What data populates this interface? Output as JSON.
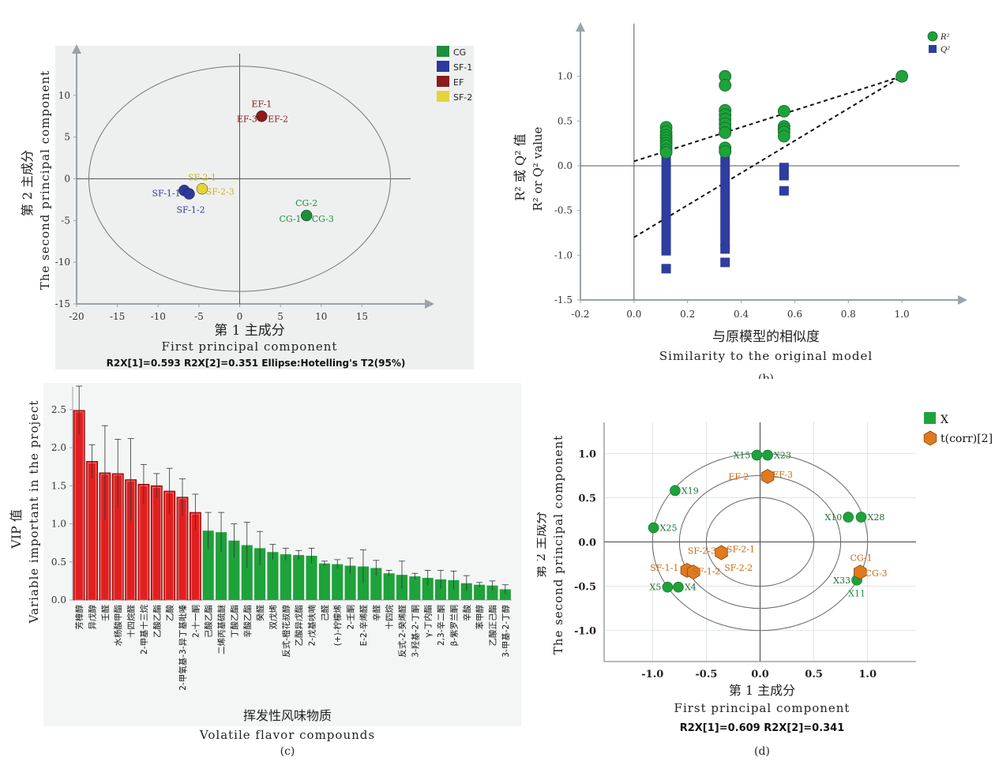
{
  "colors": {
    "CG": "#1a8f3c",
    "SF1": "#2b3a9b",
    "EF": "#8b1a1a",
    "SF2": "#e6d23a",
    "red": "#e02020",
    "green": "#1ea23a",
    "blue": "#2e3d9e",
    "orange": "#e07a20",
    "plot_bg": "#eef0f0",
    "text_dark": "#222222"
  },
  "chart_data": [
    {
      "id": "a",
      "type": "scatter",
      "panel_label": "(a)",
      "xlabel_cn": "第 1 主成分",
      "xlabel_en": "First principal component",
      "ylabel_cn": "第 2 主成分",
      "ylabel_en": "The second principal component",
      "footer": "R2X[1]=0.593 R2X[2]=0.351 Ellipse:Hotelling's T2(95%)",
      "xlim": [
        -20,
        20
      ],
      "ylim": [
        -15,
        15
      ],
      "xticks": [
        -20,
        -15,
        -10,
        -5,
        0,
        5,
        10,
        15
      ],
      "yticks": [
        -15,
        -10,
        -5,
        0,
        5,
        10
      ],
      "legend": [
        {
          "label": "CG",
          "color": "#1a8f3c"
        },
        {
          "label": "SF-1",
          "color": "#2b3a9b"
        },
        {
          "label": "EF",
          "color": "#8b1a1a"
        },
        {
          "label": "SF-2",
          "color": "#e6d23a"
        }
      ],
      "points": [
        {
          "group": "EF",
          "x": 2.7,
          "y": 7.5
        },
        {
          "group": "SF-1",
          "x": -6.8,
          "y": -1.4
        },
        {
          "group": "SF-1",
          "x": -6.2,
          "y": -1.8
        },
        {
          "group": "SF-2",
          "x": -4.6,
          "y": -1.2
        },
        {
          "group": "CG",
          "x": 8.2,
          "y": -4.4
        }
      ],
      "annotations": [
        {
          "text": "EF-1",
          "x": 2.7,
          "y": 9.0,
          "color": "#8b1a1a"
        },
        {
          "text": "EF-3",
          "x": 0.9,
          "y": 7.2,
          "color": "#8b1a1a"
        },
        {
          "text": "EF-2",
          "x": 4.7,
          "y": 7.2,
          "color": "#8b1a1a"
        },
        {
          "text": "SF-2-1",
          "x": -4.6,
          "y": 0.2,
          "color": "#c8b21a"
        },
        {
          "text": "SF-2-3",
          "x": -2.4,
          "y": -1.5,
          "color": "#c8b21a"
        },
        {
          "text": "SF-1-1",
          "x": -9.0,
          "y": -1.7,
          "color": "#2b3a9b"
        },
        {
          "text": "SF-1-2",
          "x": -6.0,
          "y": -3.7,
          "color": "#2b3a9b"
        },
        {
          "text": "CG-2",
          "x": 8.2,
          "y": -2.9,
          "color": "#1a8f3c"
        },
        {
          "text": "CG-1",
          "x": 6.2,
          "y": -4.8,
          "color": "#1a8f3c"
        },
        {
          "text": "CG-3",
          "x": 10.2,
          "y": -4.8,
          "color": "#1a8f3c"
        }
      ]
    },
    {
      "id": "b",
      "type": "scatter",
      "panel_label": "(b)",
      "xlabel_cn": "与原模型的相似度",
      "xlabel_en": "Similarity to the original model",
      "ylabel_cn": "R² 或 Q² 值",
      "ylabel_en": "R² or Q² value",
      "xlim": [
        -0.2,
        1.2
      ],
      "ylim": [
        -1.5,
        1.5
      ],
      "xticks": [
        -0.2,
        0.0,
        0.2,
        0.4,
        0.6,
        0.8,
        1.0
      ],
      "yticks": [
        -1.5,
        -1.0,
        -0.5,
        0.0,
        0.5,
        1.0
      ],
      "legend": [
        {
          "label": "R²",
          "color": "#1ea23a",
          "shape": "circle"
        },
        {
          "label": "Q²",
          "color": "#2e3d9e",
          "shape": "square"
        }
      ],
      "r2": [
        {
          "x": 0.12,
          "y": [
            0.43,
            0.38,
            0.34,
            0.31,
            0.28,
            0.25,
            0.22,
            0.18,
            0.15
          ]
        },
        {
          "x": 0.34,
          "y": [
            1.0,
            0.9,
            0.62,
            0.57,
            0.52,
            0.47,
            0.42,
            0.37,
            0.2,
            0.16
          ]
        },
        {
          "x": 0.56,
          "y": [
            0.61,
            0.44,
            0.41,
            0.38,
            0.33
          ]
        },
        {
          "x": 1.0,
          "y": [
            1.0
          ]
        }
      ],
      "q2": [
        {
          "x": 0.12,
          "y": [
            0.05,
            -0.05,
            -0.15,
            -0.25,
            -0.35,
            -0.45,
            -0.55,
            -0.65,
            -0.75,
            -0.85,
            -0.95,
            -1.15
          ]
        },
        {
          "x": 0.34,
          "y": [
            0.16,
            0.05,
            -0.05,
            -0.15,
            -0.25,
            -0.35,
            -0.45,
            -0.55,
            -0.65,
            -0.75,
            -0.85,
            -0.93,
            -1.08
          ]
        },
        {
          "x": 0.56,
          "y": [
            -0.02,
            -0.11,
            -0.28
          ]
        },
        {
          "x": 1.0,
          "y": [
            1.0
          ]
        }
      ],
      "lines": [
        {
          "from": [
            0.0,
            0.05
          ],
          "to": [
            1.0,
            1.0
          ]
        },
        {
          "from": [
            0.0,
            -0.8
          ],
          "to": [
            1.0,
            1.0
          ]
        }
      ]
    },
    {
      "id": "c",
      "type": "bar",
      "panel_label": "(c)",
      "xlabel_cn": "挥发性风味物质",
      "xlabel_en": "Volatile flavor compounds",
      "ylabel_cn": "VIP 值",
      "ylabel_en": "Variable important in the project",
      "ylim": [
        0,
        2.8
      ],
      "yticks": [
        0.0,
        0.5,
        1.0,
        1.5,
        2.0,
        2.5
      ],
      "threshold_count": 10,
      "categories": [
        "芳樟醇",
        "异戊醇",
        "壬醛",
        "水杨酸甲酯",
        "十四烷醛",
        "2-甲基十三烷",
        "乙酸乙酯",
        "乙酸",
        "2-甲氧基-3-异丁基吡嗪",
        "2-十一酮",
        "己酸乙酯",
        "二烯丙基硫醚",
        "丁酸乙酯",
        "辛酸乙酯",
        "癸醛",
        "双戊烯",
        "反式-橙花叔醇",
        "乙酸异戊酯",
        "2-戊基呋喃",
        "己醛",
        "(+)-柠檬烯",
        "2-壬酮",
        "E-2-辛烯醛",
        "辛醛",
        "十四烷",
        "反式-2-癸烯醛",
        "3-羟基-2-丁酮",
        "γ-丁内酯",
        "2,3-辛二酮",
        "β-紫罗兰酮",
        "辛酸",
        "苯甲醇",
        "乙酸正己酯",
        "3-甲基-2-丁醇"
      ],
      "values": [
        2.49,
        1.82,
        1.67,
        1.66,
        1.58,
        1.52,
        1.5,
        1.43,
        1.35,
        1.15,
        0.91,
        0.89,
        0.78,
        0.72,
        0.68,
        0.63,
        0.6,
        0.59,
        0.58,
        0.48,
        0.47,
        0.45,
        0.44,
        0.42,
        0.35,
        0.33,
        0.31,
        0.29,
        0.27,
        0.26,
        0.22,
        0.2,
        0.19,
        0.14
      ],
      "errors": [
        0.32,
        0.22,
        0.62,
        0.45,
        0.54,
        0.26,
        0.16,
        0.3,
        0.24,
        0.24,
        0.24,
        0.26,
        0.22,
        0.3,
        0.22,
        0.1,
        0.08,
        0.06,
        0.1,
        0.03,
        0.06,
        0.1,
        0.22,
        0.1,
        0.04,
        0.18,
        0.04,
        0.1,
        0.12,
        0.12,
        0.1,
        0.03,
        0.06,
        0.06
      ]
    },
    {
      "id": "d",
      "type": "scatter",
      "panel_label": "(d)",
      "xlabel_cn": "第 1 主成分",
      "xlabel_en": "First principal component",
      "ylabel_cn": "第 2 主成分",
      "ylabel_en": "The second principal component",
      "footer": "R2X[1]=0.609 R2X[2]=0.341",
      "xlim": [
        -1.45,
        1.45
      ],
      "ylim": [
        -1.35,
        1.35
      ],
      "xticks": [
        -1.0,
        -0.5,
        0.0,
        0.5,
        1.0
      ],
      "yticks": [
        -1.0,
        -0.5,
        0.0,
        0.5,
        1.0
      ],
      "legend": [
        {
          "label": "X",
          "color": "#1ea23a",
          "shape": "square"
        },
        {
          "label": "t(corr)[2]",
          "color": "#e07a20",
          "shape": "hexagon"
        }
      ],
      "x_points": [
        {
          "label": "X15",
          "x": -0.03,
          "y": 0.98
        },
        {
          "label": "X23",
          "x": 0.07,
          "y": 0.98
        },
        {
          "label": "X19",
          "x": -0.79,
          "y": 0.58
        },
        {
          "label": "X25",
          "x": -0.99,
          "y": 0.16
        },
        {
          "label": "X10",
          "x": 0.82,
          "y": 0.28
        },
        {
          "label": "X28",
          "x": 0.94,
          "y": 0.28
        },
        {
          "label": "X33",
          "x": 0.9,
          "y": -0.43
        },
        {
          "label": "X5",
          "x": -0.86,
          "y": -0.51
        },
        {
          "label": "X4",
          "x": -0.76,
          "y": -0.51
        }
      ],
      "t_points": [
        {
          "x": 0.07,
          "y": 0.74
        },
        {
          "x": -0.36,
          "y": -0.12
        },
        {
          "x": -0.68,
          "y": -0.32
        },
        {
          "x": -0.62,
          "y": -0.34
        },
        {
          "x": 0.93,
          "y": -0.34
        }
      ],
      "annotations": [
        {
          "text": "EF-2",
          "x": -0.2,
          "y": 0.74,
          "color": "#c76a10"
        },
        {
          "text": "EF-3",
          "x": 0.21,
          "y": 0.76,
          "color": "#c76a10"
        },
        {
          "text": "SF-2-3",
          "x": -0.54,
          "y": -0.1,
          "color": "#c76a10"
        },
        {
          "text": "SF-2-1",
          "x": -0.18,
          "y": -0.08,
          "color": "#c76a10"
        },
        {
          "text": "SF-2-2",
          "x": -0.2,
          "y": -0.29,
          "color": "#c76a10"
        },
        {
          "text": "SF-1-1",
          "x": -0.89,
          "y": -0.29,
          "color": "#c76a10"
        },
        {
          "text": "SF-1-2",
          "x": -0.5,
          "y": -0.33,
          "color": "#c76a10"
        },
        {
          "text": "CG-1",
          "x": 0.94,
          "y": -0.18,
          "color": "#c76a10"
        },
        {
          "text": "CG-3",
          "x": 1.08,
          "y": -0.35,
          "color": "#c76a10"
        },
        {
          "text": "X11",
          "x": 0.9,
          "y": -0.58,
          "color": "#1a8f3c"
        }
      ]
    }
  ]
}
